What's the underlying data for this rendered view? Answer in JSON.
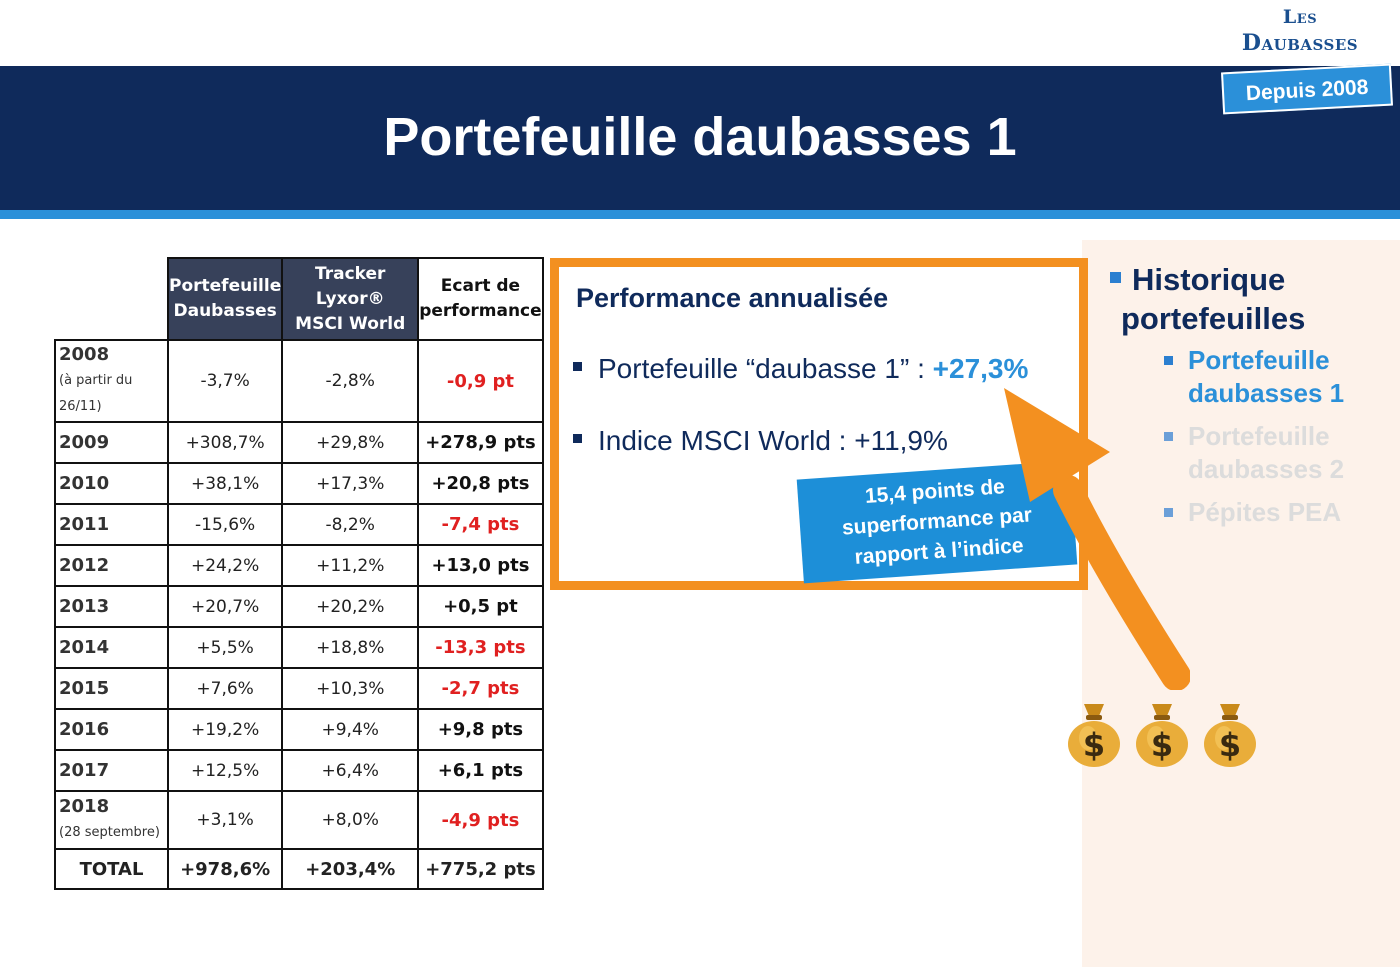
{
  "logo": {
    "line1": "Les",
    "line2": "Daubasses",
    "badge": "Depuis 2008"
  },
  "slide": {
    "title": "Portefeuille daubasses 1"
  },
  "table": {
    "headers": [
      {
        "lines": [
          "Portefeuille",
          "Daubasses"
        ]
      },
      {
        "lines": [
          "Tracker",
          "Lyxor®",
          "MSCI World"
        ]
      },
      {
        "lines": [
          "Ecart de",
          "performance"
        ]
      }
    ],
    "rows": [
      {
        "year": "2008",
        "note": [
          "(à partir du",
          "26/11)"
        ],
        "portfolio": "-3,7%",
        "tracker": "-2,8%",
        "gap": "-0,9 pt",
        "gap_sign": "neg"
      },
      {
        "year": "2009",
        "portfolio": "+308,7%",
        "tracker": "+29,8%",
        "gap": "+278,9 pts",
        "gap_sign": "pos"
      },
      {
        "year": "2010",
        "portfolio": "+38,1%",
        "tracker": "+17,3%",
        "gap": "+20,8 pts",
        "gap_sign": "pos"
      },
      {
        "year": "2011",
        "portfolio": "-15,6%",
        "tracker": "-8,2%",
        "gap": "-7,4 pts",
        "gap_sign": "neg"
      },
      {
        "year": "2012",
        "portfolio": "+24,2%",
        "tracker": "+11,2%",
        "gap": "+13,0 pts",
        "gap_sign": "pos"
      },
      {
        "year": "2013",
        "portfolio": "+20,7%",
        "tracker": "+20,2%",
        "gap": "+0,5 pt",
        "gap_sign": "pos"
      },
      {
        "year": "2014",
        "portfolio": "+5,5%",
        "tracker": "+18,8%",
        "gap": "-13,3 pts",
        "gap_sign": "neg"
      },
      {
        "year": "2015",
        "portfolio": "+7,6%",
        "tracker": "+10,3%",
        "gap": "-2,7 pts",
        "gap_sign": "neg"
      },
      {
        "year": "2016",
        "portfolio": "+19,2%",
        "tracker": "+9,4%",
        "gap": "+9,8 pts",
        "gap_sign": "pos"
      },
      {
        "year": "2017",
        "portfolio": "+12,5%",
        "tracker": "+6,4%",
        "gap": "+6,1 pts",
        "gap_sign": "pos"
      },
      {
        "year": "2018",
        "note": [
          "(28 septembre)"
        ],
        "portfolio": "+3,1%",
        "tracker": "+8,0%",
        "gap": "-4,9 pts",
        "gap_sign": "neg"
      }
    ],
    "total": {
      "label": "TOTAL",
      "portfolio": "+978,6%",
      "tracker": "+203,4%",
      "gap": "+775,2 pts"
    }
  },
  "performance_box": {
    "title": "Performance annualisée",
    "item1_label": "Portefeuille “daubasse 1” : ",
    "item1_value": "+27,3%",
    "item2": "Indice MSCI World : +11,9%",
    "callout": [
      "15,4 points de",
      "superformance par",
      "rapport à l’indice"
    ]
  },
  "sidebar": {
    "heading_line1": "Historique",
    "heading_line2": "portefeuilles",
    "items": [
      {
        "lines": [
          "Portefeuille",
          "daubasses 1"
        ],
        "state": "active"
      },
      {
        "lines": [
          "Portefeuille",
          "daubasses 2"
        ],
        "state": "faded"
      },
      {
        "lines": [
          "Pépites PEA"
        ],
        "state": "faded"
      }
    ]
  },
  "colors": {
    "navy": "#0f2a5b",
    "accent_blue": "#2b90d9",
    "orange": "#f39020",
    "negative_red": "#e02020",
    "header_dark": "#37415a",
    "peach": "#fdf2ea"
  },
  "icons": [
    "money-bag-icon",
    "money-bag-icon",
    "money-bag-icon"
  ]
}
